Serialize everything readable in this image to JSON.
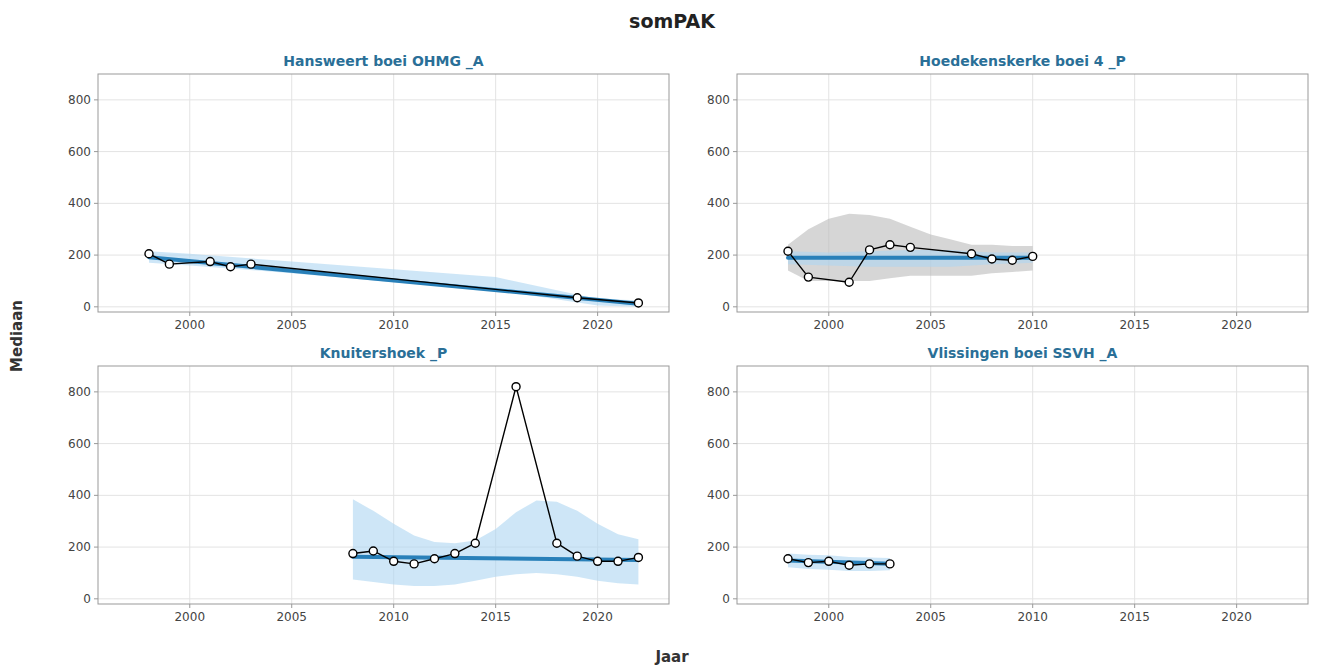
{
  "title": "somPAK",
  "x_label": "Jaar",
  "y_label": "Mediaan",
  "chart_data": [
    {
      "type": "line",
      "title": "Hansweert boei OHMG _A",
      "xlim": [
        1995.5,
        2023.5
      ],
      "xticks": [
        2000,
        2005,
        2010,
        2015,
        2020
      ],
      "ylim": [
        -20,
        900
      ],
      "yticks": [
        0,
        200,
        400,
        600,
        800
      ],
      "grid": true,
      "series": [
        {
          "type": "area",
          "color": "#aed6f1",
          "x": [
            1998,
            2000,
            2005,
            2010,
            2015,
            2020,
            2022
          ],
          "upper": [
            215,
            205,
            175,
            145,
            115,
            30,
            25
          ],
          "lower": [
            170,
            160,
            130,
            95,
            65,
            5,
            0
          ]
        },
        {
          "type": "line",
          "color": "#2980b9",
          "x": [
            1998,
            2022
          ],
          "values": [
            192,
            12
          ]
        },
        {
          "type": "line",
          "color": "black",
          "marker": "circle",
          "x": [
            1998,
            1999,
            2001,
            2002,
            2003,
            2019,
            2022
          ],
          "values": [
            205,
            165,
            175,
            155,
            165,
            35,
            15
          ]
        }
      ]
    },
    {
      "type": "line",
      "title": "Hoedekenskerke boei 4 _P",
      "xlim": [
        1995.5,
        2023.5
      ],
      "xticks": [
        2000,
        2005,
        2010,
        2015,
        2020
      ],
      "ylim": [
        -20,
        900
      ],
      "yticks": [
        0,
        200,
        400,
        600,
        800
      ],
      "grid": true,
      "series": [
        {
          "type": "area",
          "color": "#bbbbbb",
          "x": [
            1998,
            1999,
            2000,
            2001,
            2002,
            2003,
            2004,
            2005,
            2006,
            2007,
            2008,
            2009,
            2010
          ],
          "upper": [
            240,
            300,
            340,
            360,
            355,
            340,
            310,
            280,
            260,
            240,
            240,
            235,
            235
          ],
          "lower": [
            140,
            100,
            100,
            100,
            100,
            110,
            120,
            120,
            120,
            120,
            130,
            135,
            140
          ]
        },
        {
          "type": "area",
          "color": "#aed6f1",
          "x": [
            1998,
            2000,
            2002,
            2004,
            2006,
            2008,
            2010
          ],
          "upper": [
            215,
            210,
            215,
            220,
            220,
            210,
            210
          ],
          "lower": [
            165,
            160,
            155,
            155,
            155,
            165,
            170
          ]
        },
        {
          "type": "line",
          "color": "#2980b9",
          "x": [
            1998,
            2010
          ],
          "values": [
            190,
            190
          ]
        },
        {
          "type": "line",
          "color": "black",
          "marker": "circle",
          "x": [
            1998,
            1999,
            2001,
            2002,
            2003,
            2004,
            2007,
            2008,
            2009,
            2010
          ],
          "values": [
            215,
            115,
            95,
            220,
            240,
            230,
            205,
            185,
            180,
            195
          ]
        }
      ]
    },
    {
      "type": "line",
      "title": "Knuitershoek _P",
      "xlim": [
        1995.5,
        2023.5
      ],
      "xticks": [
        2000,
        2005,
        2010,
        2015,
        2020
      ],
      "ylim": [
        -20,
        900
      ],
      "yticks": [
        0,
        200,
        400,
        600,
        800
      ],
      "grid": true,
      "series": [
        {
          "type": "area",
          "color": "#aed6f1",
          "x": [
            2008,
            2009,
            2010,
            2011,
            2012,
            2013,
            2014,
            2015,
            2016,
            2017,
            2018,
            2019,
            2020,
            2021,
            2022
          ],
          "upper": [
            385,
            340,
            290,
            245,
            220,
            215,
            225,
            270,
            335,
            380,
            375,
            340,
            290,
            250,
            230
          ],
          "lower": [
            75,
            65,
            55,
            50,
            50,
            55,
            70,
            85,
            95,
            100,
            95,
            85,
            70,
            60,
            55
          ]
        },
        {
          "type": "line",
          "color": "#2980b9",
          "x": [
            2008,
            2022
          ],
          "values": [
            163,
            150
          ]
        },
        {
          "type": "line",
          "color": "black",
          "marker": "circle",
          "x": [
            2008,
            2009,
            2010,
            2011,
            2012,
            2013,
            2014,
            2016,
            2018,
            2019,
            2020,
            2021,
            2022
          ],
          "values": [
            175,
            185,
            145,
            135,
            155,
            175,
            215,
            820,
            215,
            165,
            145,
            145,
            160
          ]
        }
      ]
    },
    {
      "type": "line",
      "title": "Vlissingen boei SSVH _A",
      "xlim": [
        1995.5,
        2023.5
      ],
      "xticks": [
        2000,
        2005,
        2010,
        2015,
        2020
      ],
      "ylim": [
        -20,
        900
      ],
      "yticks": [
        0,
        200,
        400,
        600,
        800
      ],
      "grid": true,
      "series": [
        {
          "type": "area",
          "color": "#aed6f1",
          "x": [
            1998,
            1999,
            2000,
            2001,
            2002,
            2003
          ],
          "upper": [
            175,
            170,
            168,
            162,
            160,
            158
          ],
          "lower": [
            122,
            115,
            112,
            108,
            108,
            110
          ]
        },
        {
          "type": "line",
          "color": "#2980b9",
          "x": [
            1998,
            2003
          ],
          "values": [
            148,
            136
          ]
        },
        {
          "type": "line",
          "color": "black",
          "marker": "circle",
          "x": [
            1998,
            1999,
            2000,
            2001,
            2002,
            2003
          ],
          "values": [
            155,
            140,
            145,
            130,
            135,
            135
          ]
        }
      ]
    }
  ]
}
